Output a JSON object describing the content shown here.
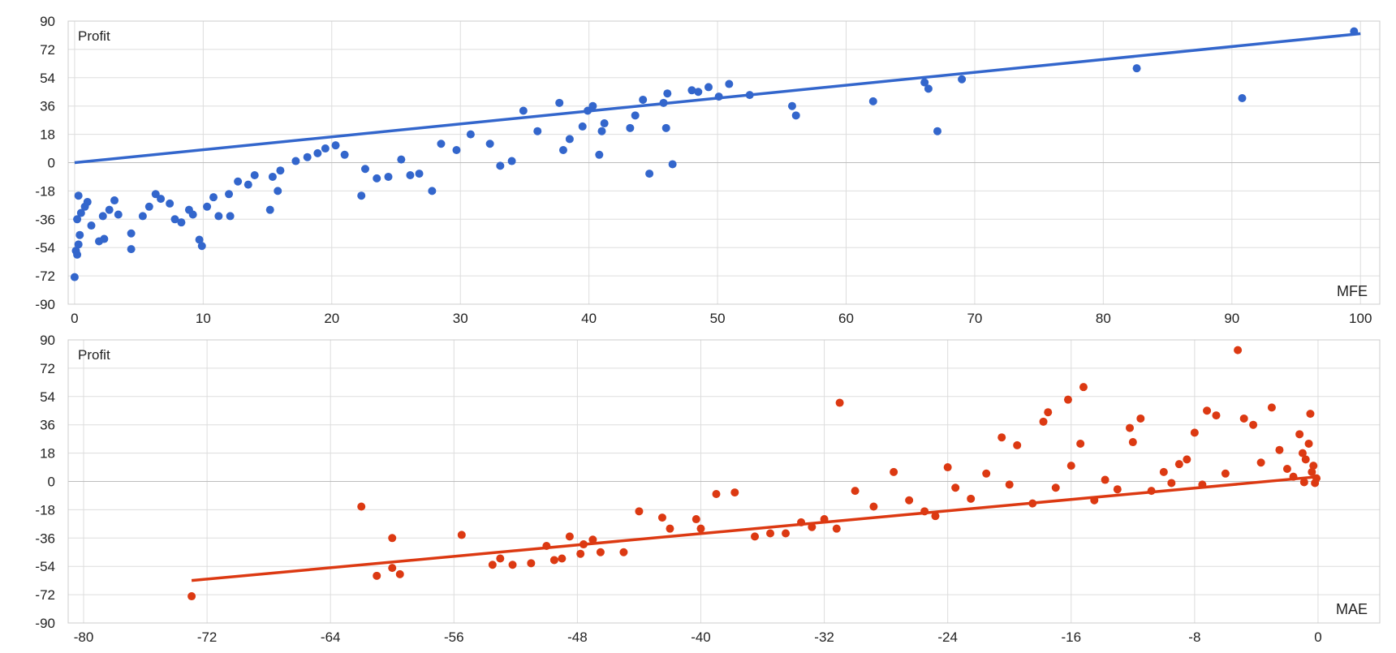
{
  "chart_data": [
    {
      "type": "scatter",
      "xlabel": "MFE",
      "ylabel": "Profit",
      "xlim": [
        -0.5,
        101.5
      ],
      "ylim": [
        -90,
        90
      ],
      "x_ticks": [
        "0",
        "10",
        "20",
        "30",
        "40",
        "50",
        "60",
        "70",
        "80",
        "90",
        "100"
      ],
      "y_ticks": [
        "90",
        "72",
        "54",
        "36",
        "18",
        "0",
        "-18",
        "-36",
        "-54",
        "-72",
        "-90"
      ],
      "grid": true,
      "series": [
        {
          "color": "#3366cc",
          "points": [
            [
              0.0,
              -72.8
            ],
            [
              0.2,
              -58.5
            ],
            [
              0.1,
              -56.0
            ],
            [
              0.3,
              -52.0
            ],
            [
              0.4,
              -46.0
            ],
            [
              0.2,
              -36.0
            ],
            [
              0.5,
              -32.0
            ],
            [
              0.8,
              -28.0
            ],
            [
              1.0,
              -25.0
            ],
            [
              0.3,
              -21.0
            ],
            [
              1.3,
              -40.0
            ],
            [
              1.9,
              -50.0
            ],
            [
              2.3,
              -48.5
            ],
            [
              2.2,
              -34.0
            ],
            [
              2.7,
              -30.0
            ],
            [
              3.1,
              -24.0
            ],
            [
              3.4,
              -33.0
            ],
            [
              4.4,
              -45.0
            ],
            [
              4.4,
              -55.0
            ],
            [
              5.3,
              -34.0
            ],
            [
              5.8,
              -28.0
            ],
            [
              6.3,
              -20.0
            ],
            [
              6.7,
              -23.0
            ],
            [
              7.4,
              -26.0
            ],
            [
              7.8,
              -36.0
            ],
            [
              8.3,
              -38.0
            ],
            [
              8.9,
              -30.0
            ],
            [
              9.2,
              -33.0
            ],
            [
              9.7,
              -49.0
            ],
            [
              9.9,
              -53.0
            ],
            [
              10.3,
              -28.0
            ],
            [
              10.8,
              -22.0
            ],
            [
              11.2,
              -34.0
            ],
            [
              12.1,
              -34.0
            ],
            [
              12.0,
              -20.0
            ],
            [
              12.7,
              -12.0
            ],
            [
              13.5,
              -14.0
            ],
            [
              14.0,
              -8.0
            ],
            [
              15.2,
              -30.0
            ],
            [
              15.4,
              -9.0
            ],
            [
              15.8,
              -18.0
            ],
            [
              16.0,
              -5.0
            ],
            [
              17.2,
              1.0
            ],
            [
              18.1,
              3.5
            ],
            [
              18.9,
              6.0
            ],
            [
              19.5,
              9.0
            ],
            [
              20.3,
              11.0
            ],
            [
              21.0,
              5.0
            ],
            [
              22.3,
              -21.0
            ],
            [
              22.6,
              -4.0
            ],
            [
              23.5,
              -10.0
            ],
            [
              24.4,
              -9.0
            ],
            [
              25.4,
              2.0
            ],
            [
              26.1,
              -8.0
            ],
            [
              26.8,
              -7.0
            ],
            [
              27.8,
              -18.0
            ],
            [
              28.5,
              12.0
            ],
            [
              29.7,
              8.0
            ],
            [
              30.8,
              18.0
            ],
            [
              32.3,
              12.0
            ],
            [
              33.1,
              -2.0
            ],
            [
              34.0,
              1.0
            ],
            [
              34.9,
              33.0
            ],
            [
              36.0,
              20.0
            ],
            [
              37.7,
              38.0
            ],
            [
              38.0,
              8.0
            ],
            [
              38.5,
              15.0
            ],
            [
              39.5,
              23.0
            ],
            [
              39.9,
              33.0
            ],
            [
              40.3,
              36.0
            ],
            [
              41.0,
              20.0
            ],
            [
              41.2,
              25.0
            ],
            [
              40.8,
              5.0
            ],
            [
              43.2,
              22.0
            ],
            [
              43.6,
              30.0
            ],
            [
              44.2,
              40.0
            ],
            [
              44.7,
              -7.0
            ],
            [
              45.8,
              38.0
            ],
            [
              46.1,
              44.0
            ],
            [
              46.0,
              22.0
            ],
            [
              46.5,
              -1.0
            ],
            [
              48.0,
              46.0
            ],
            [
              48.5,
              45.0
            ],
            [
              49.3,
              48.0
            ],
            [
              50.1,
              42.0
            ],
            [
              50.9,
              50.0
            ],
            [
              52.5,
              43.0
            ],
            [
              55.8,
              36.0
            ],
            [
              56.1,
              30.0
            ],
            [
              62.1,
              39.0
            ],
            [
              66.1,
              51.0
            ],
            [
              66.4,
              47.0
            ],
            [
              67.1,
              20.0
            ],
            [
              69.0,
              53.0
            ],
            [
              82.6,
              60.0
            ],
            [
              90.8,
              41.0
            ],
            [
              99.5,
              83.5
            ]
          ]
        }
      ],
      "trendline": {
        "x": [
          0,
          100
        ],
        "y": [
          0,
          82
        ],
        "color": "#3366cc"
      }
    },
    {
      "type": "scatter",
      "xlabel": "MAE",
      "ylabel": "Profit",
      "xlim": [
        -81,
        4
      ],
      "ylim": [
        -90,
        90
      ],
      "x_ticks": [
        "-80",
        "-72",
        "-64",
        "-56",
        "-48",
        "-40",
        "-32",
        "-24",
        "-16",
        "-8",
        "0"
      ],
      "y_ticks": [
        "90",
        "72",
        "54",
        "36",
        "18",
        "0",
        "-18",
        "-36",
        "-54",
        "-72",
        "-90"
      ],
      "grid": true,
      "series": [
        {
          "color": "#dc3912",
          "points": [
            [
              -73.0,
              -73.0
            ],
            [
              -61.0,
              -60.0
            ],
            [
              -60.0,
              -55.0
            ],
            [
              -60.0,
              -36.0
            ],
            [
              -59.5,
              -59.0
            ],
            [
              -62.0,
              -16.0
            ],
            [
              -55.5,
              -34.0
            ],
            [
              -53.5,
              -53.0
            ],
            [
              -53.0,
              -49.0
            ],
            [
              -52.2,
              -53.0
            ],
            [
              -51.0,
              -52.0
            ],
            [
              -50.0,
              -41.0
            ],
            [
              -49.5,
              -50.0
            ],
            [
              -49.0,
              -49.0
            ],
            [
              -47.8,
              -46.0
            ],
            [
              -47.6,
              -40.0
            ],
            [
              -46.5,
              -45.0
            ],
            [
              -47.0,
              -37.0
            ],
            [
              -48.5,
              -35.0
            ],
            [
              -45.0,
              -45.0
            ],
            [
              -44.0,
              -19.0
            ],
            [
              -42.5,
              -23.0
            ],
            [
              -42.0,
              -30.0
            ],
            [
              -40.3,
              -24.0
            ],
            [
              -40.0,
              -30.0
            ],
            [
              -39.0,
              -8.0
            ],
            [
              -37.8,
              -7.0
            ],
            [
              -36.5,
              -35.0
            ],
            [
              -35.5,
              -33.0
            ],
            [
              -34.5,
              -33.0
            ],
            [
              -33.5,
              -26.0
            ],
            [
              -32.8,
              -29.0
            ],
            [
              -32.0,
              -24.0
            ],
            [
              -31.2,
              -30.0
            ],
            [
              -31.0,
              50.0
            ],
            [
              -30.0,
              -6.0
            ],
            [
              -28.8,
              -16.0
            ],
            [
              -27.5,
              6.0
            ],
            [
              -26.5,
              -12.0
            ],
            [
              -25.5,
              -19.0
            ],
            [
              -24.8,
              -22.0
            ],
            [
              -24.0,
              9.0
            ],
            [
              -23.5,
              -4.0
            ],
            [
              -22.5,
              -11.0
            ],
            [
              -21.5,
              5.0
            ],
            [
              -20.5,
              28.0
            ],
            [
              -20.0,
              -2.0
            ],
            [
              -19.5,
              23.0
            ],
            [
              -18.5,
              -14.0
            ],
            [
              -17.8,
              38.0
            ],
            [
              -17.5,
              44.0
            ],
            [
              -17.0,
              -4.0
            ],
            [
              -16.2,
              52.0
            ],
            [
              -16.0,
              10.0
            ],
            [
              -15.4,
              24.0
            ],
            [
              -15.2,
              60.0
            ],
            [
              -14.5,
              -12.0
            ],
            [
              -13.8,
              1.0
            ],
            [
              -13.0,
              -5.0
            ],
            [
              -12.2,
              34.0
            ],
            [
              -12.0,
              25.0
            ],
            [
              -11.5,
              40.0
            ],
            [
              -10.8,
              -6.0
            ],
            [
              -10.0,
              6.0
            ],
            [
              -9.5,
              -1.0
            ],
            [
              -9.0,
              11.0
            ],
            [
              -8.5,
              14.0
            ],
            [
              -8.0,
              31.0
            ],
            [
              -7.5,
              -2.0
            ],
            [
              -7.2,
              45.0
            ],
            [
              -6.6,
              42.0
            ],
            [
              -6.0,
              5.0
            ],
            [
              -5.2,
              83.5
            ],
            [
              -4.8,
              40.0
            ],
            [
              -4.2,
              36.0
            ],
            [
              -3.7,
              12.0
            ],
            [
              -3.0,
              47.0
            ],
            [
              -2.5,
              20.0
            ],
            [
              -2.0,
              8.0
            ],
            [
              -1.6,
              3.0
            ],
            [
              -1.0,
              18.0
            ],
            [
              -0.8,
              14.0
            ],
            [
              -0.5,
              43.0
            ],
            [
              -0.3,
              10.0
            ],
            [
              -0.1,
              2.0
            ],
            [
              -0.2,
              -1.0
            ],
            [
              -0.4,
              6.0
            ],
            [
              -0.6,
              24.0
            ],
            [
              -1.2,
              30.0
            ],
            [
              -0.9,
              -0.5
            ]
          ]
        }
      ],
      "trendline": {
        "x": [
          -73,
          0
        ],
        "y": [
          -63,
          3
        ],
        "color": "#dc3912"
      }
    }
  ]
}
